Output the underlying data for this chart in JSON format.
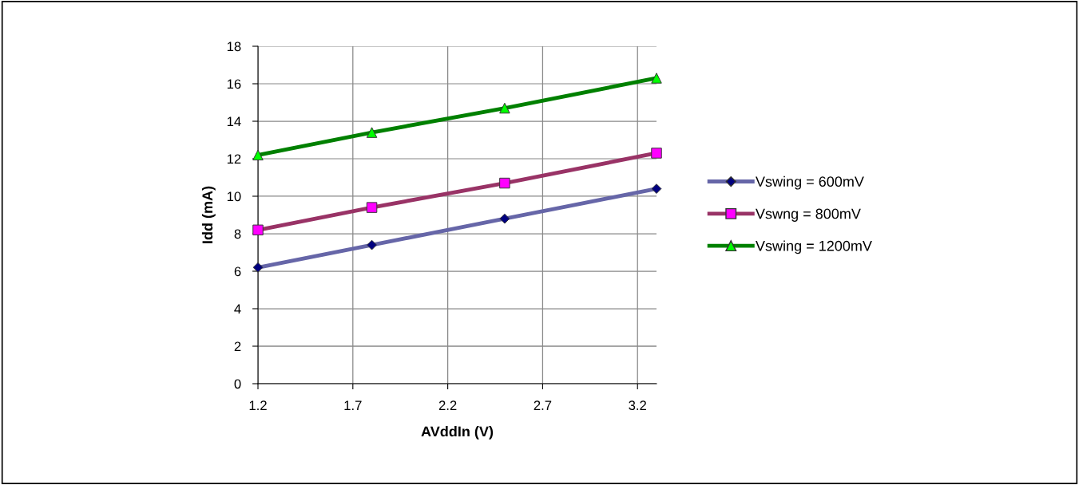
{
  "chart_data": {
    "type": "line",
    "xlabel": "AVddIn (V)",
    "ylabel": "Idd (mA)",
    "x": [
      1.2,
      1.8,
      2.5,
      3.3
    ],
    "series": [
      {
        "name": "Vswing = 600mV",
        "color": "#6666a8",
        "colors": [
          "#000080",
          "#000080",
          "#000080",
          "#000080"
        ],
        "marker": "diamond",
        "values": [
          6.2,
          7.4,
          8.8,
          10.4
        ]
      },
      {
        "name": "Vswng = 800mV",
        "color": "#993366",
        "colors": [
          "#ff00ff",
          "#ff00ff",
          "#ff00ff",
          "#ff00ff"
        ],
        "marker": "square",
        "values": [
          8.2,
          9.4,
          10.7,
          12.3
        ]
      },
      {
        "name": "Vswing = 1200mV",
        "color": "#008000",
        "colors": [
          "#00ff00",
          "#00ff00",
          "#00ff00",
          "#00ff00"
        ],
        "marker": "triangle",
        "values": [
          12.2,
          13.4,
          14.7,
          16.3
        ]
      }
    ],
    "xlim": [
      1.2,
      3.3
    ],
    "xticks": [
      1.2,
      1.7,
      2.2,
      2.7,
      3.2
    ],
    "ylim": [
      0,
      18
    ],
    "yticks": [
      0,
      2,
      4,
      6,
      8,
      10,
      12,
      14,
      16,
      18
    ],
    "grid": true,
    "legend": "right",
    "line_style": "solid"
  }
}
